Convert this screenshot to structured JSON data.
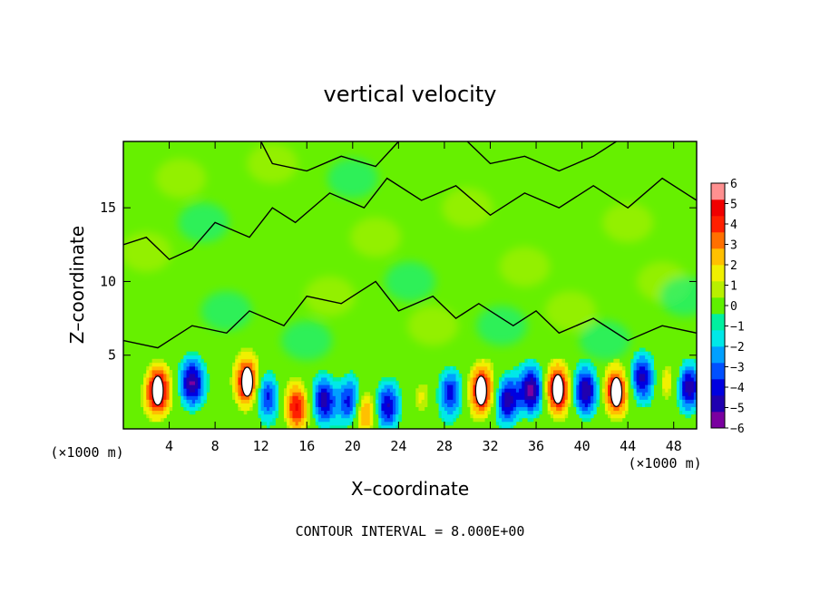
{
  "chart_data": {
    "type": "heatmap",
    "title": "vertical velocity",
    "xlabel": "X–coordinate",
    "ylabel": "Z–coordinate",
    "x_unit_left": "(×1000 m)",
    "x_unit_right": "(×1000 m)",
    "xlim": [
      0,
      50
    ],
    "ylim": [
      0,
      19.5
    ],
    "x_ticks": [
      "4",
      "8",
      "12",
      "16",
      "20",
      "24",
      "28",
      "32",
      "36",
      "40",
      "44",
      "48"
    ],
    "y_ticks": [
      "5",
      "10",
      "15"
    ],
    "footnote": "CONTOUR INTERVAL = 8.000E+00",
    "colorbar": {
      "ticks": [
        "6",
        "5",
        "4",
        "3",
        "2",
        "1",
        "0",
        "−1",
        "−2",
        "−3",
        "−4",
        "−5",
        "−6"
      ],
      "range": [
        -6,
        6
      ],
      "colors": [
        "#7a00a0",
        "#2000b0",
        "#0000e0",
        "#0050ff",
        "#00a0ff",
        "#00e8e8",
        "#00f0a0",
        "#60f000",
        "#b8f000",
        "#f0f000",
        "#ffc000",
        "#ff7000",
        "#ff2000",
        "#f00000",
        "#ff9090"
      ]
    },
    "updrafts": [
      {
        "x": 3.0,
        "z": 2.6,
        "w": 6.0
      },
      {
        "x": 10.8,
        "z": 3.2,
        "w": 6.0
      },
      {
        "x": 15.1,
        "z": 1.5,
        "w": 4.5
      },
      {
        "x": 21.0,
        "z": 1.3,
        "w": 3.5
      },
      {
        "x": 31.2,
        "z": 2.6,
        "w": 5.5
      },
      {
        "x": 37.9,
        "z": 2.7,
        "w": 6.0
      },
      {
        "x": 43.0,
        "z": 2.5,
        "w": 5.5
      },
      {
        "x": 47.6,
        "z": 3.0,
        "w": 1.5
      },
      {
        "x": 26.0,
        "z": 2.3,
        "w": 1.5
      }
    ],
    "downdrafts": [
      {
        "x": 6.0,
        "z": 3.1,
        "w": -5.0
      },
      {
        "x": 12.5,
        "z": 2.3,
        "w": -4.0
      },
      {
        "x": 17.5,
        "z": 2.0,
        "w": -5.0
      },
      {
        "x": 19.8,
        "z": 1.8,
        "w": -4.5
      },
      {
        "x": 23.0,
        "z": 1.6,
        "w": -4.5
      },
      {
        "x": 28.5,
        "z": 2.5,
        "w": -4.0
      },
      {
        "x": 33.5,
        "z": 2.0,
        "w": -5.0
      },
      {
        "x": 35.6,
        "z": 2.6,
        "w": -5.5
      },
      {
        "x": 40.3,
        "z": 2.5,
        "w": -5.0
      },
      {
        "x": 45.3,
        "z": 3.5,
        "w": -4.5
      },
      {
        "x": 49.3,
        "z": 2.8,
        "w": -5.0
      }
    ]
  }
}
